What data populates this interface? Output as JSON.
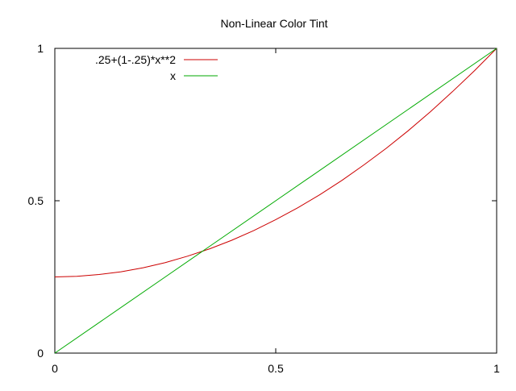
{
  "chart_data": {
    "type": "line",
    "title": "Non-Linear Color Tint",
    "xlabel": "",
    "ylabel": "",
    "xlim": [
      0,
      1
    ],
    "ylim": [
      0,
      1
    ],
    "grid": false,
    "legend_position": "top-left",
    "x_ticks": [
      {
        "value": 0,
        "label": "0"
      },
      {
        "value": 0.5,
        "label": "0.5"
      },
      {
        "value": 1,
        "label": "1"
      }
    ],
    "y_ticks": [
      {
        "value": 0,
        "label": "0"
      },
      {
        "value": 0.5,
        "label": "0.5"
      },
      {
        "value": 1,
        "label": "1"
      }
    ],
    "series": [
      {
        "name": ".25+(1-.25)*x**2",
        "color": "#cc0000",
        "x": [
          0,
          0.05,
          0.1,
          0.15,
          0.2,
          0.25,
          0.3,
          0.35,
          0.4,
          0.45,
          0.5,
          0.55,
          0.6,
          0.65,
          0.7,
          0.75,
          0.8,
          0.85,
          0.9,
          0.95,
          1
        ],
        "y": [
          0.25,
          0.252,
          0.258,
          0.267,
          0.28,
          0.297,
          0.318,
          0.342,
          0.37,
          0.402,
          0.438,
          0.477,
          0.52,
          0.567,
          0.618,
          0.672,
          0.73,
          0.792,
          0.858,
          0.927,
          1
        ]
      },
      {
        "name": "x",
        "color": "#00aa00",
        "x": [
          0,
          0.25,
          0.5,
          0.75,
          1
        ],
        "y": [
          0,
          0.25,
          0.5,
          0.75,
          1
        ]
      }
    ]
  }
}
